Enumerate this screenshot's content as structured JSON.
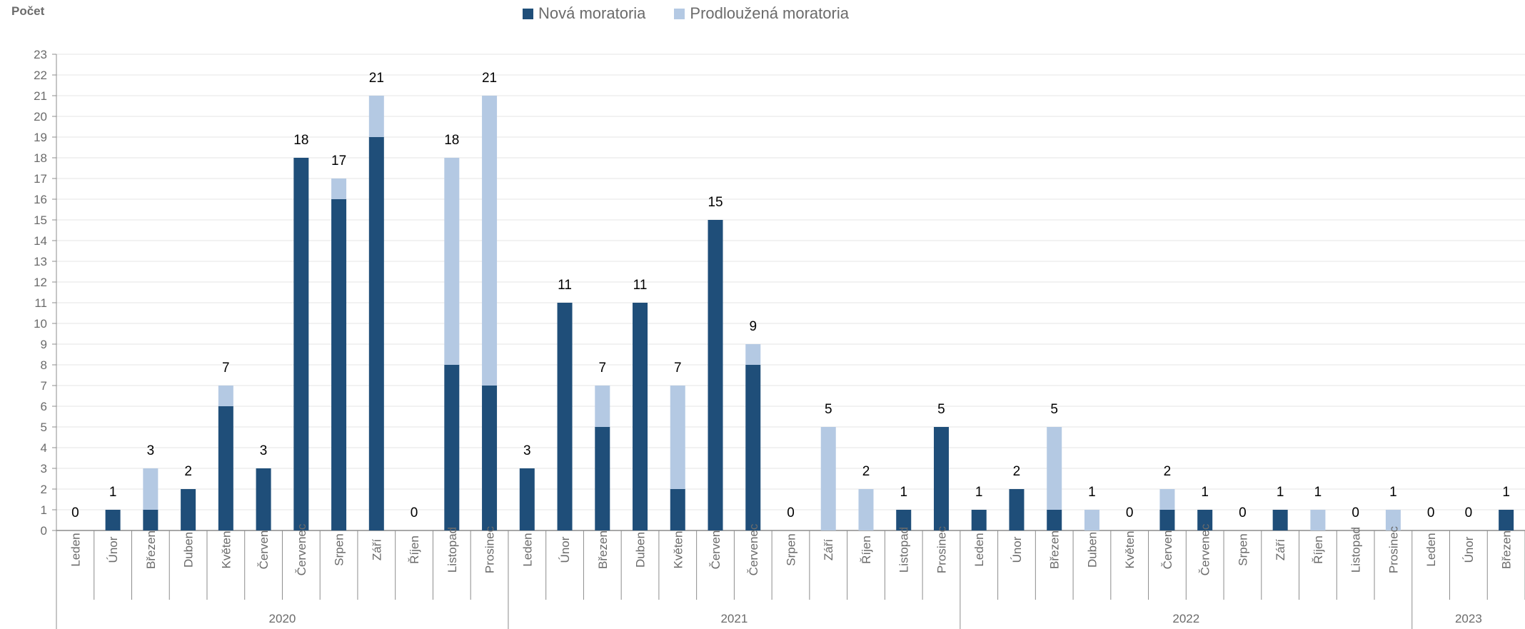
{
  "chart_data": {
    "type": "bar",
    "stacked": true,
    "ylabel": "Počet",
    "ylim": [
      0,
      23
    ],
    "ytick_step": 1,
    "grid": true,
    "legend_position": "top-center",
    "colors": {
      "new": "#1f4e79",
      "extended": "#b4c9e3",
      "axis": "#8c8c8c",
      "grid": "#e6e6e6",
      "text": "#6b6b6b"
    },
    "series": [
      {
        "name": "Nová moratoria",
        "color": "#1f4e79",
        "values": [
          0,
          1,
          1,
          2,
          6,
          3,
          18,
          16,
          19,
          0,
          8,
          7,
          3,
          11,
          5,
          11,
          2,
          15,
          8,
          0,
          0,
          0,
          1,
          5,
          1,
          2,
          1,
          0,
          0,
          1,
          1,
          0,
          1,
          0,
          0,
          0,
          0,
          0,
          1
        ]
      },
      {
        "name": "Prodloužená moratoria",
        "color": "#b4c9e3",
        "values": [
          0,
          0,
          2,
          0,
          1,
          0,
          0,
          1,
          2,
          0,
          10,
          14,
          0,
          0,
          2,
          0,
          5,
          0,
          1,
          0,
          5,
          2,
          0,
          0,
          0,
          0,
          4,
          1,
          0,
          1,
          0,
          0,
          0,
          1,
          0,
          1,
          0,
          0,
          0
        ]
      }
    ],
    "totals": [
      0,
      1,
      3,
      2,
      7,
      3,
      18,
      17,
      21,
      0,
      18,
      21,
      3,
      11,
      7,
      11,
      7,
      15,
      9,
      0,
      5,
      2,
      1,
      5,
      1,
      2,
      5,
      1,
      0,
      2,
      1,
      0,
      1,
      1,
      0,
      1,
      0,
      0,
      1
    ],
    "categories": [
      "Leden",
      "Únor",
      "Březen",
      "Duben",
      "Květen",
      "Červen",
      "Červenec",
      "Srpen",
      "Září",
      "Říjen",
      "Listopad",
      "Prosinec",
      "Leden",
      "Únor",
      "Březen",
      "Duben",
      "Květen",
      "Červen",
      "Červenec",
      "Srpen",
      "Září",
      "Říjen",
      "Listopad",
      "Prosinec",
      "Leden",
      "Únor",
      "Březen",
      "Duben",
      "Květen",
      "Červen",
      "Červenec",
      "Srpen",
      "Září",
      "Říjen",
      "Listopad",
      "Prosinec",
      "Leden",
      "Únor",
      "Březen"
    ],
    "groups": [
      {
        "label": "2020",
        "count": 12
      },
      {
        "label": "2021",
        "count": 12
      },
      {
        "label": "2022",
        "count": 12
      },
      {
        "label": "2023",
        "count": 3
      }
    ]
  }
}
